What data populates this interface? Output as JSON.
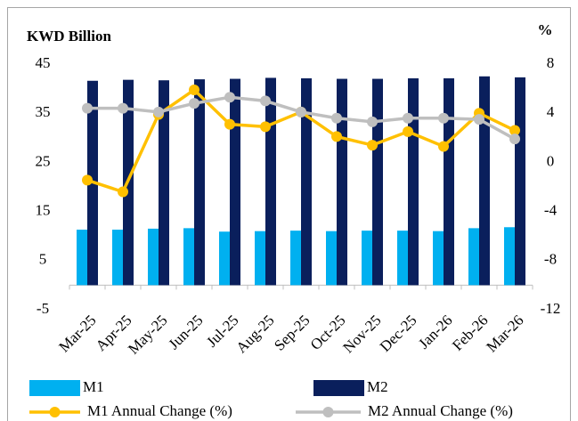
{
  "chart_data": {
    "type": "bar",
    "y_label": "KWD Billion",
    "y2_label": "%",
    "categories": [
      "Mar-25",
      "Apr-25",
      "May-25",
      "Jun-25",
      "Jul-25",
      "Aug-25",
      "Sep-25",
      "Oct-25",
      "Nov-25",
      "Dec-25",
      "Jan-26",
      "Feb-26",
      "Mar-26"
    ],
    "series": [
      {
        "name": "M1",
        "type": "bar",
        "color": "#00b0f0",
        "values": [
          11.3,
          11.3,
          11.5,
          11.6,
          10.9,
          11.0,
          11.1,
          11.0,
          11.1,
          11.1,
          11.0,
          11.6,
          11.8
        ]
      },
      {
        "name": "M2",
        "type": "bar",
        "color": "#0a1f5c",
        "values": [
          41.6,
          41.8,
          41.7,
          41.9,
          42.0,
          42.2,
          42.1,
          42.0,
          42.0,
          42.1,
          42.1,
          42.5,
          42.3
        ]
      },
      {
        "name": "M1 Annual Change (%)",
        "type": "line",
        "axis": "y2",
        "color": "#ffc000",
        "values": [
          -1.45,
          -2.4,
          3.9,
          5.9,
          3.1,
          2.9,
          4.1,
          2.1,
          1.4,
          2.5,
          1.3,
          4.0,
          2.6
        ]
      },
      {
        "name": "M2 Annual Change (%)",
        "type": "line",
        "axis": "y2",
        "color": "#bfbfbf",
        "values": [
          4.4,
          4.4,
          4.1,
          4.8,
          5.3,
          5.0,
          4.1,
          3.6,
          3.3,
          3.6,
          3.6,
          3.5,
          1.9
        ]
      }
    ],
    "ylim": [
      -5,
      45
    ],
    "yticks": [
      -5,
      5,
      15,
      25,
      35,
      45
    ],
    "y2lim": [
      -12,
      8
    ],
    "y2ticks": [
      -12,
      -8,
      -4,
      0,
      4,
      8
    ]
  }
}
